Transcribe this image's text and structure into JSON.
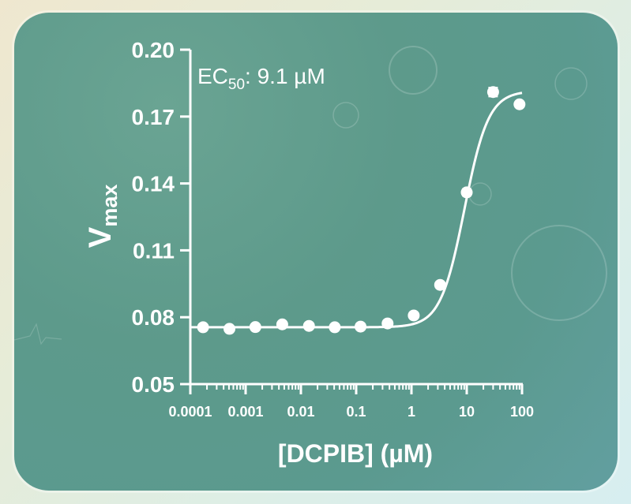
{
  "chart_data": {
    "type": "scatter",
    "xlabel": "[DCPIB] (µM)",
    "ylabel_main": "V",
    "ylabel_sub": "max",
    "annotation": {
      "prefix": "EC",
      "subscript": "50",
      "suffix": ": 9.1 µM"
    },
    "x_scale": "log",
    "xlim": [
      0.0001,
      100
    ],
    "ylim": [
      0.05,
      0.2
    ],
    "x_ticks": [
      {
        "value": 0.0001,
        "label": "0.0001"
      },
      {
        "value": 0.001,
        "label": "0.001"
      },
      {
        "value": 0.01,
        "label": "0.01"
      },
      {
        "value": 0.1,
        "label": "0.1"
      },
      {
        "value": 1,
        "label": "1"
      },
      {
        "value": 10,
        "label": "10"
      },
      {
        "value": 100,
        "label": "100"
      }
    ],
    "y_ticks": [
      {
        "value": 0.05,
        "label": "0.05"
      },
      {
        "value": 0.08,
        "label": "0.08"
      },
      {
        "value": 0.11,
        "label": "0.11"
      },
      {
        "value": 0.14,
        "label": "0.14"
      },
      {
        "value": 0.17,
        "label": "0.17"
      },
      {
        "value": 0.2,
        "label": "0.20"
      }
    ],
    "points": [
      {
        "x": 0.00017,
        "y": 0.0755,
        "err": 0
      },
      {
        "x": 0.00051,
        "y": 0.0748,
        "err": 0
      },
      {
        "x": 0.0015,
        "y": 0.0756,
        "err": 0
      },
      {
        "x": 0.0046,
        "y": 0.0768,
        "err": 0
      },
      {
        "x": 0.014,
        "y": 0.0761,
        "err": 0
      },
      {
        "x": 0.041,
        "y": 0.0755,
        "err": 0
      },
      {
        "x": 0.12,
        "y": 0.0758,
        "err": 0
      },
      {
        "x": 0.37,
        "y": 0.0772,
        "err": 0
      },
      {
        "x": 1.1,
        "y": 0.0808,
        "err": 0
      },
      {
        "x": 3.3,
        "y": 0.0945,
        "err": 0
      },
      {
        "x": 10,
        "y": 0.136,
        "err": 0.0015
      },
      {
        "x": 30,
        "y": 0.181,
        "err": 0.002
      },
      {
        "x": 90,
        "y": 0.1755,
        "err": 0
      }
    ],
    "fit": {
      "bottom": 0.0755,
      "top": 0.1815,
      "ec50": 9.1,
      "hill": 2.0
    },
    "grid": false,
    "legend": "none",
    "colors": {
      "marks": "#ffffff",
      "axes": "#ffffff"
    }
  }
}
